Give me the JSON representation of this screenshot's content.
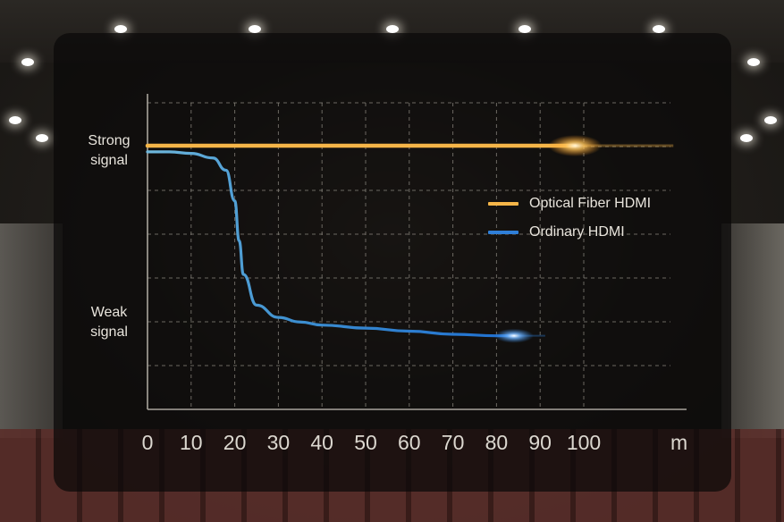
{
  "chart_data": {
    "type": "line",
    "x": [
      0,
      10,
      20,
      30,
      40,
      50,
      60,
      70,
      80,
      90,
      100
    ],
    "x_ticks": [
      "0",
      "10",
      "20",
      "30",
      "40",
      "50",
      "60",
      "70",
      "80",
      "90",
      "100"
    ],
    "x_unit": "m",
    "xlim": [
      0,
      120
    ],
    "y_labels": {
      "strong": "Strong signal",
      "weak": "Weak signal"
    },
    "ylim": [
      0,
      1
    ],
    "grid": true,
    "legend_position": "right-center",
    "series": [
      {
        "name": "Optical Fiber HDMI",
        "color": "#f5b548",
        "x": [
          0,
          10,
          20,
          30,
          40,
          50,
          60,
          70,
          80,
          90,
          98
        ],
        "y": [
          0.86,
          0.86,
          0.86,
          0.86,
          0.86,
          0.86,
          0.86,
          0.86,
          0.86,
          0.86,
          0.86
        ]
      },
      {
        "name": "Ordinary HDMI",
        "color": "#2f7fd8",
        "x": [
          0,
          5,
          10,
          15,
          18,
          20,
          21,
          22,
          25,
          30,
          35,
          40,
          50,
          60,
          70,
          80,
          84
        ],
        "y": [
          0.84,
          0.84,
          0.835,
          0.82,
          0.78,
          0.68,
          0.55,
          0.44,
          0.34,
          0.3,
          0.285,
          0.275,
          0.265,
          0.255,
          0.245,
          0.24,
          0.24
        ]
      }
    ]
  },
  "colors": {
    "axis": "#a8a49c",
    "grid": "#8a867e",
    "text": "#e8e4dc"
  }
}
